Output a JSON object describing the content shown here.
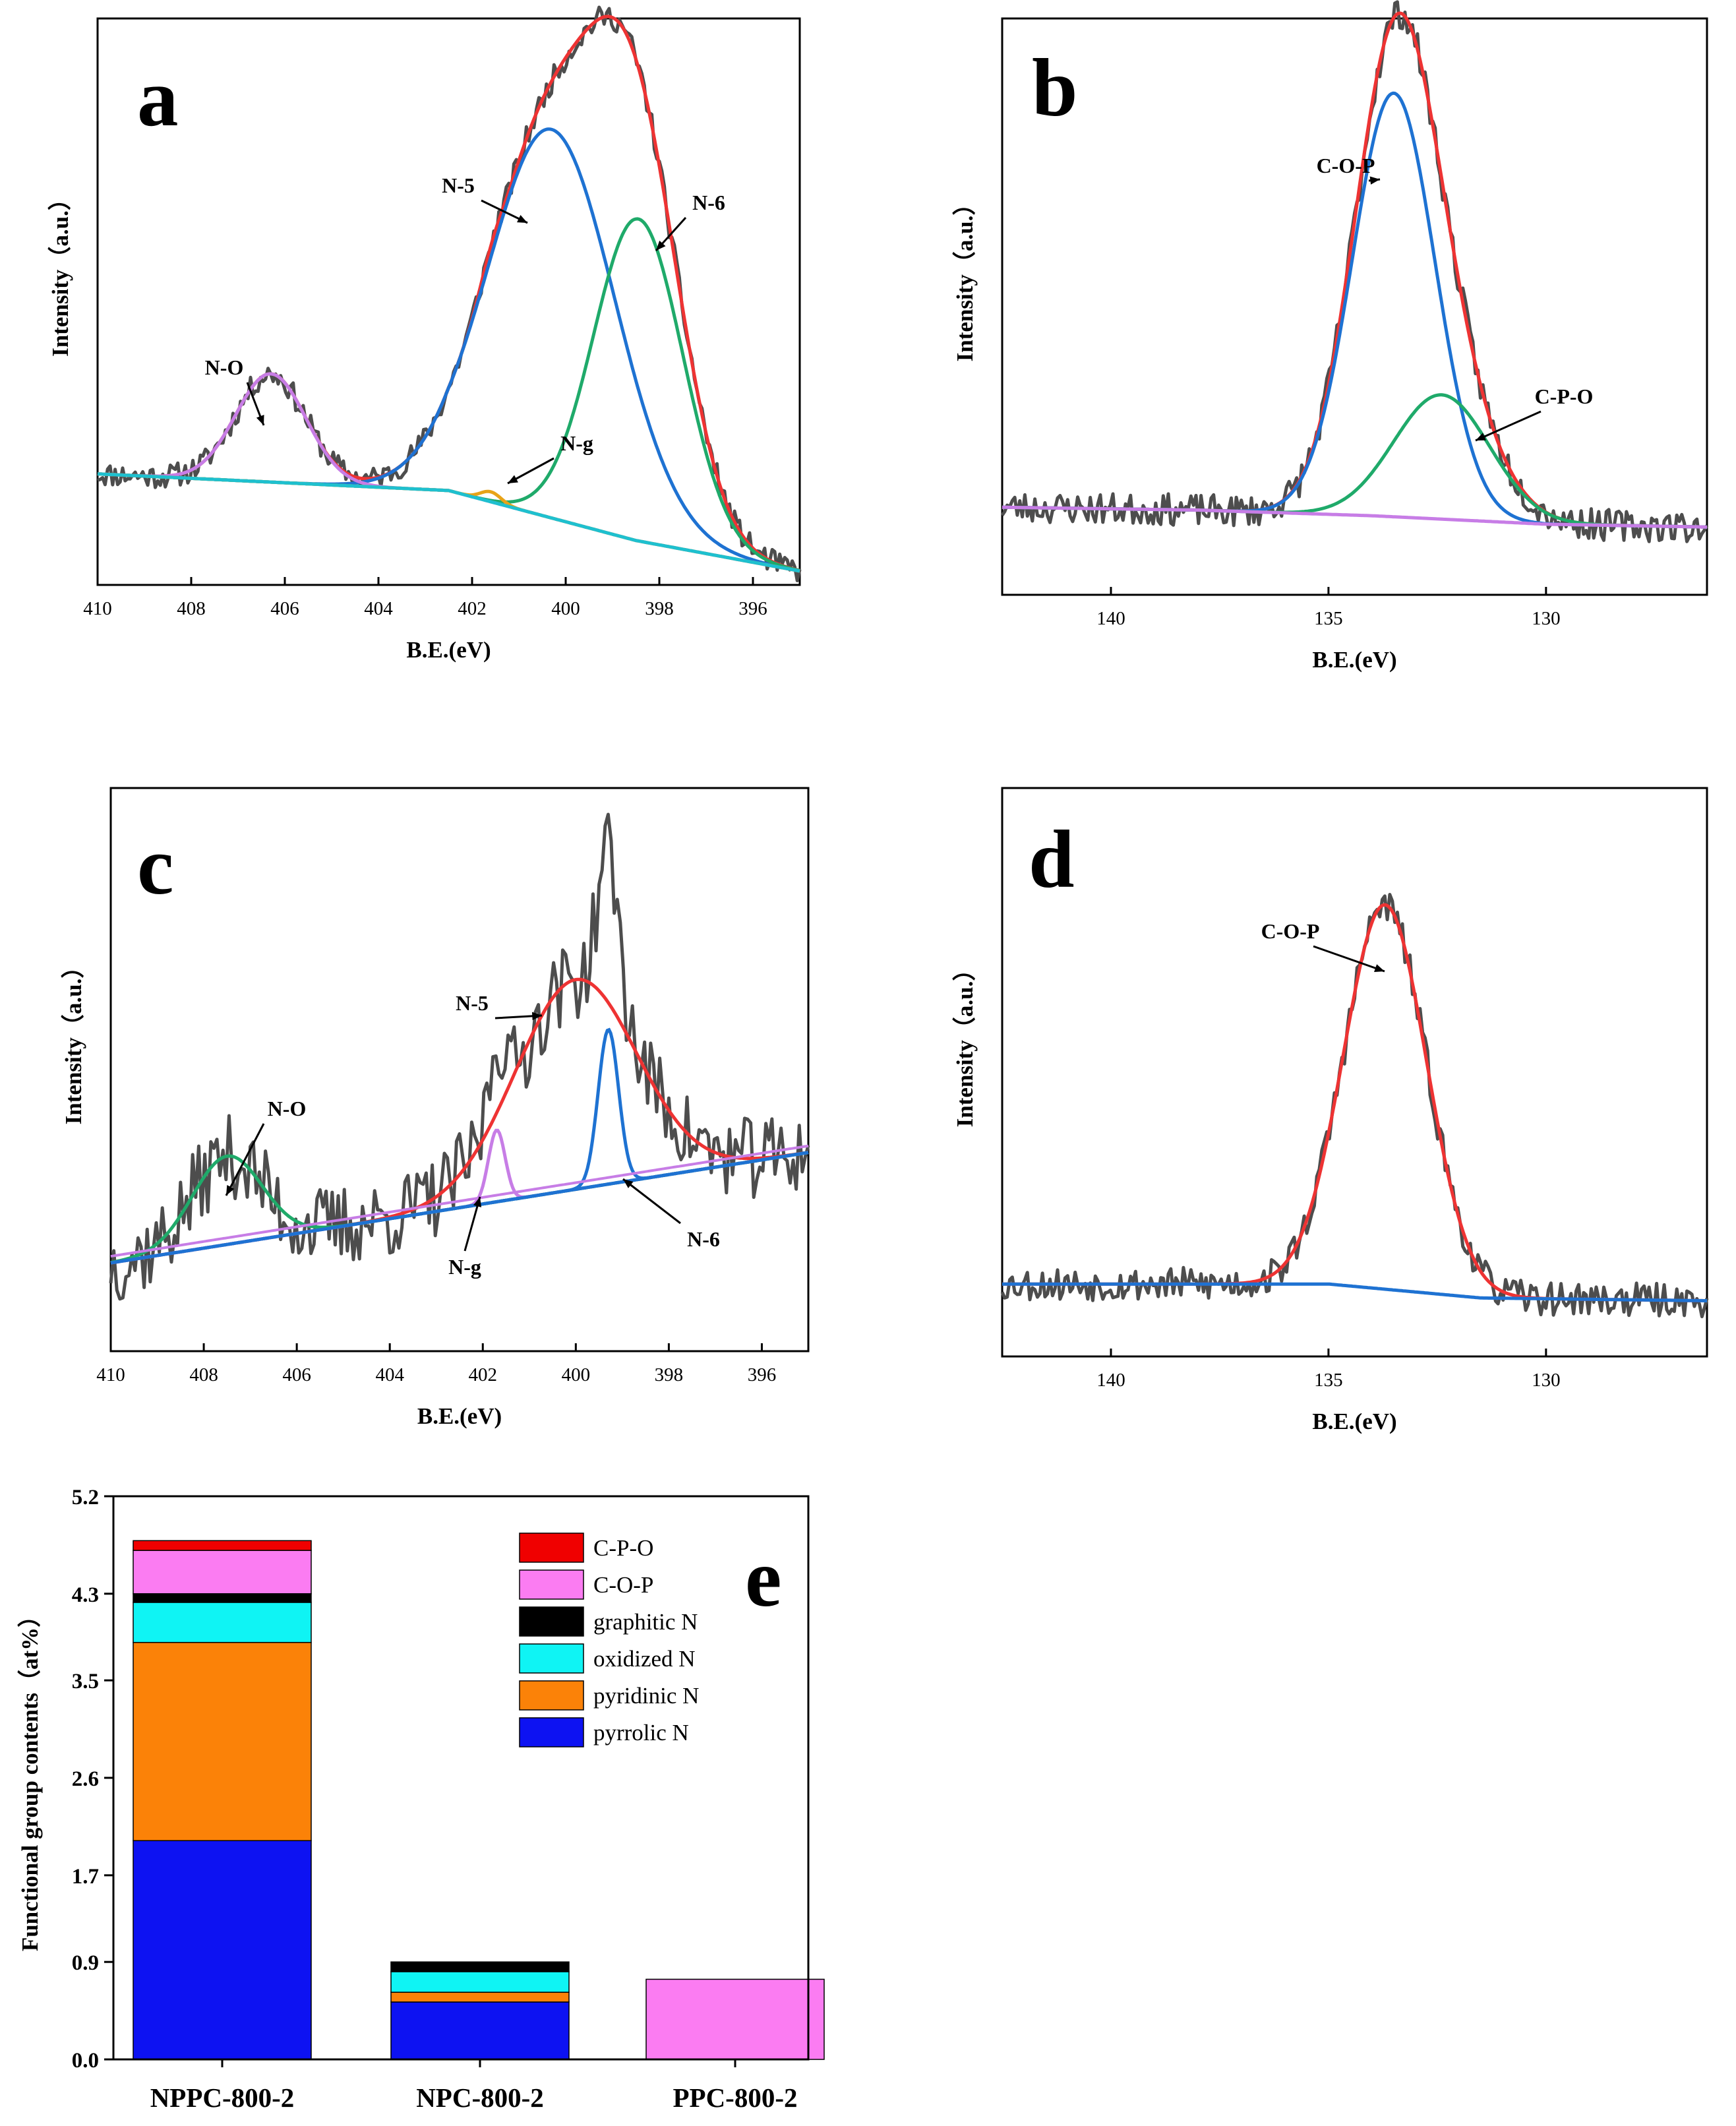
{
  "chart_data": [
    {
      "panel": "a",
      "type": "line",
      "xlabel": "B.E.(eV)",
      "ylabel": "Intensity（a.u.）",
      "xlim": [
        410,
        395
      ],
      "ylim": [
        0,
        1
      ],
      "xticks": [
        410,
        408,
        406,
        404,
        402,
        400,
        398,
        396
      ],
      "tick_labels": [
        "410",
        "408",
        "406",
        "404",
        "402",
        "400",
        "398",
        "396"
      ],
      "series": [
        {
          "name": "raw",
          "color": "#4d4d4d",
          "kind": "noisy",
          "seed": 11,
          "noise": 0.022
        },
        {
          "name": "fit",
          "color": "#ee3333",
          "kind": "sum"
        },
        {
          "name": "N-5",
          "color": "#1e72d2",
          "center": 400.3,
          "amp": 0.7,
          "width": 1.35
        },
        {
          "name": "N-6",
          "color": "#1faa6a",
          "center": 398.45,
          "amp": 0.58,
          "width": 0.95
        },
        {
          "name": "N-O",
          "color": "#c77de6",
          "center": 406.3,
          "amp": 0.195,
          "width": 0.75
        },
        {
          "name": "N-g",
          "color": "#e8a317",
          "center": 401.6,
          "amp": 0.018,
          "width": 0.22
        },
        {
          "name": "baseline",
          "color": "#1ec0cf",
          "kind": "baseline"
        }
      ],
      "baseline": {
        "points": [
          [
            410,
            0.2
          ],
          [
            402.5,
            0.17
          ],
          [
            398.5,
            0.08
          ],
          [
            395,
            0.025
          ]
        ]
      },
      "annotations": [
        {
          "text": "N-5",
          "target_x": 400.45
        },
        {
          "text": "N-6",
          "target_x": 398.15
        },
        {
          "text": "N-O",
          "target_x": 406.3
        },
        {
          "text": "N-g",
          "target_x": 401.4
        }
      ]
    },
    {
      "panel": "b",
      "type": "line",
      "xlabel": "B.E.(eV)",
      "ylabel": "Intensity（a.u.）",
      "xlim": [
        142.5,
        126.3
      ],
      "ylim": [
        0,
        1
      ],
      "xticks": [
        140,
        135,
        130
      ],
      "tick_labels": [
        "140",
        "135",
        "130"
      ],
      "series": [
        {
          "name": "raw",
          "color": "#4d4d4d",
          "kind": "noisy",
          "seed": 23,
          "noise": 0.028
        },
        {
          "name": "fit",
          "color": "#ee3333",
          "kind": "sum"
        },
        {
          "name": "C-O-P",
          "color": "#1e72d2",
          "center": 133.5,
          "amp": 0.75,
          "width": 0.95
        },
        {
          "name": "C-P-O",
          "color": "#1faa6a",
          "center": 132.4,
          "amp": 0.22,
          "width": 1.1
        },
        {
          "name": "baseline",
          "color": "#c77de6",
          "kind": "baseline"
        }
      ],
      "baseline": {
        "points": [
          [
            142.5,
            0.155
          ],
          [
            138,
            0.15
          ],
          [
            134,
            0.14
          ],
          [
            130,
            0.125
          ],
          [
            126.3,
            0.12
          ]
        ]
      },
      "annotations": [
        {
          "text": "C-O-P",
          "target_x": 133.9
        },
        {
          "text": "C-P-O",
          "target_x": 131.4
        }
      ]
    },
    {
      "panel": "c",
      "type": "line",
      "xlabel": "B.E.(eV)",
      "ylabel": "Intensity（a.u.）",
      "xlim": [
        410,
        395
      ],
      "ylim": [
        0,
        1
      ],
      "xticks": [
        410,
        408,
        406,
        404,
        402,
        400,
        398,
        396
      ],
      "tick_labels": [
        "410",
        "408",
        "406",
        "404",
        "402",
        "400",
        "398",
        "396"
      ],
      "series": [
        {
          "name": "raw",
          "color": "#4d4d4d",
          "kind": "noisy",
          "seed": 37,
          "noise": 0.075
        },
        {
          "name": "N-5",
          "color": "#ee3333",
          "center": 400.0,
          "amp": 0.38,
          "width": 1.3
        },
        {
          "name": "N-6",
          "color": "#1e72d2",
          "center": 399.3,
          "amp": 0.28,
          "width": 0.22
        },
        {
          "name": "N-g",
          "color": "#c77de6",
          "center": 401.7,
          "amp": 0.13,
          "width": 0.18
        },
        {
          "name": "N-O",
          "color": "#1faa6a",
          "center": 407.5,
          "amp": 0.16,
          "width": 0.75
        },
        {
          "name": "baseline",
          "color": "#1e72d2",
          "kind": "baseline"
        },
        {
          "name": "baseline-2",
          "color": "#c77de6",
          "kind": "baseline2"
        }
      ],
      "baseline": {
        "points": [
          [
            410,
            0.16
          ],
          [
            395,
            0.36
          ]
        ]
      },
      "annotations": [
        {
          "text": "N-5",
          "target_x": 400.2
        },
        {
          "text": "N-O",
          "target_x": 407.7
        },
        {
          "text": "N-g",
          "target_x": 401.8
        },
        {
          "text": "N-6",
          "target_x": 398.7
        }
      ]
    },
    {
      "panel": "d",
      "type": "line",
      "xlabel": "B.E.(eV)",
      "ylabel": "Intensity（a.u.）",
      "xlim": [
        142.5,
        126.3
      ],
      "ylim": [
        0,
        1
      ],
      "xticks": [
        140,
        135,
        130
      ],
      "tick_labels": [
        "140",
        "135",
        "130"
      ],
      "series": [
        {
          "name": "raw",
          "color": "#4d4d4d",
          "kind": "noisy",
          "seed": 53,
          "noise": 0.03
        },
        {
          "name": "C-O-P",
          "color": "#ee3333",
          "center": 133.7,
          "amp": 0.69,
          "width": 0.95
        },
        {
          "name": "baseline",
          "color": "#1e72d2",
          "kind": "baseline"
        }
      ],
      "baseline": {
        "points": [
          [
            142.5,
            0.13
          ],
          [
            135,
            0.13
          ],
          [
            131.5,
            0.105
          ],
          [
            126.3,
            0.1
          ]
        ]
      },
      "annotations": [
        {
          "text": "C-O-P",
          "target_x": 134.0
        }
      ]
    },
    {
      "panel": "e",
      "type": "bar",
      "stacked": true,
      "ylabel": "Functional group contents（at%）",
      "ylim": [
        0,
        5.2
      ],
      "yticks": [
        0.0,
        0.9,
        1.7,
        2.6,
        3.5,
        4.3,
        5.2
      ],
      "ytick_labels": [
        "0.0",
        "0.9",
        "1.7",
        "2.6",
        "3.5",
        "4.3",
        "5.2"
      ],
      "categories": [
        "NPPC-800-2",
        "NPC-800-2",
        "PPC-800-2"
      ],
      "series": [
        {
          "name": "pyrrolic N",
          "color": "#0d12f2",
          "values": [
            2.02,
            0.53,
            0
          ]
        },
        {
          "name": "pyridinic N",
          "color": "#fb8208",
          "values": [
            1.83,
            0.09,
            0
          ]
        },
        {
          "name": "oxidized N",
          "color": "#0ff4f4",
          "values": [
            0.37,
            0.19,
            0
          ]
        },
        {
          "name": "graphitic N",
          "color": "#000000",
          "values": [
            0.08,
            0.09,
            0
          ]
        },
        {
          "name": "C-O-P",
          "color": "#fb7cf2",
          "values": [
            0.4,
            0,
            0.74
          ]
        },
        {
          "name": "C-P-O",
          "color": "#f00000",
          "values": [
            0.09,
            0,
            0
          ]
        }
      ],
      "legend_order": [
        "C-P-O",
        "C-O-P",
        "graphitic N",
        "oxidized N",
        "pyridinic N",
        "pyrrolic N"
      ],
      "legend_position": "top-right"
    }
  ],
  "panel_letters": [
    "a",
    "b",
    "c",
    "d",
    "e"
  ]
}
